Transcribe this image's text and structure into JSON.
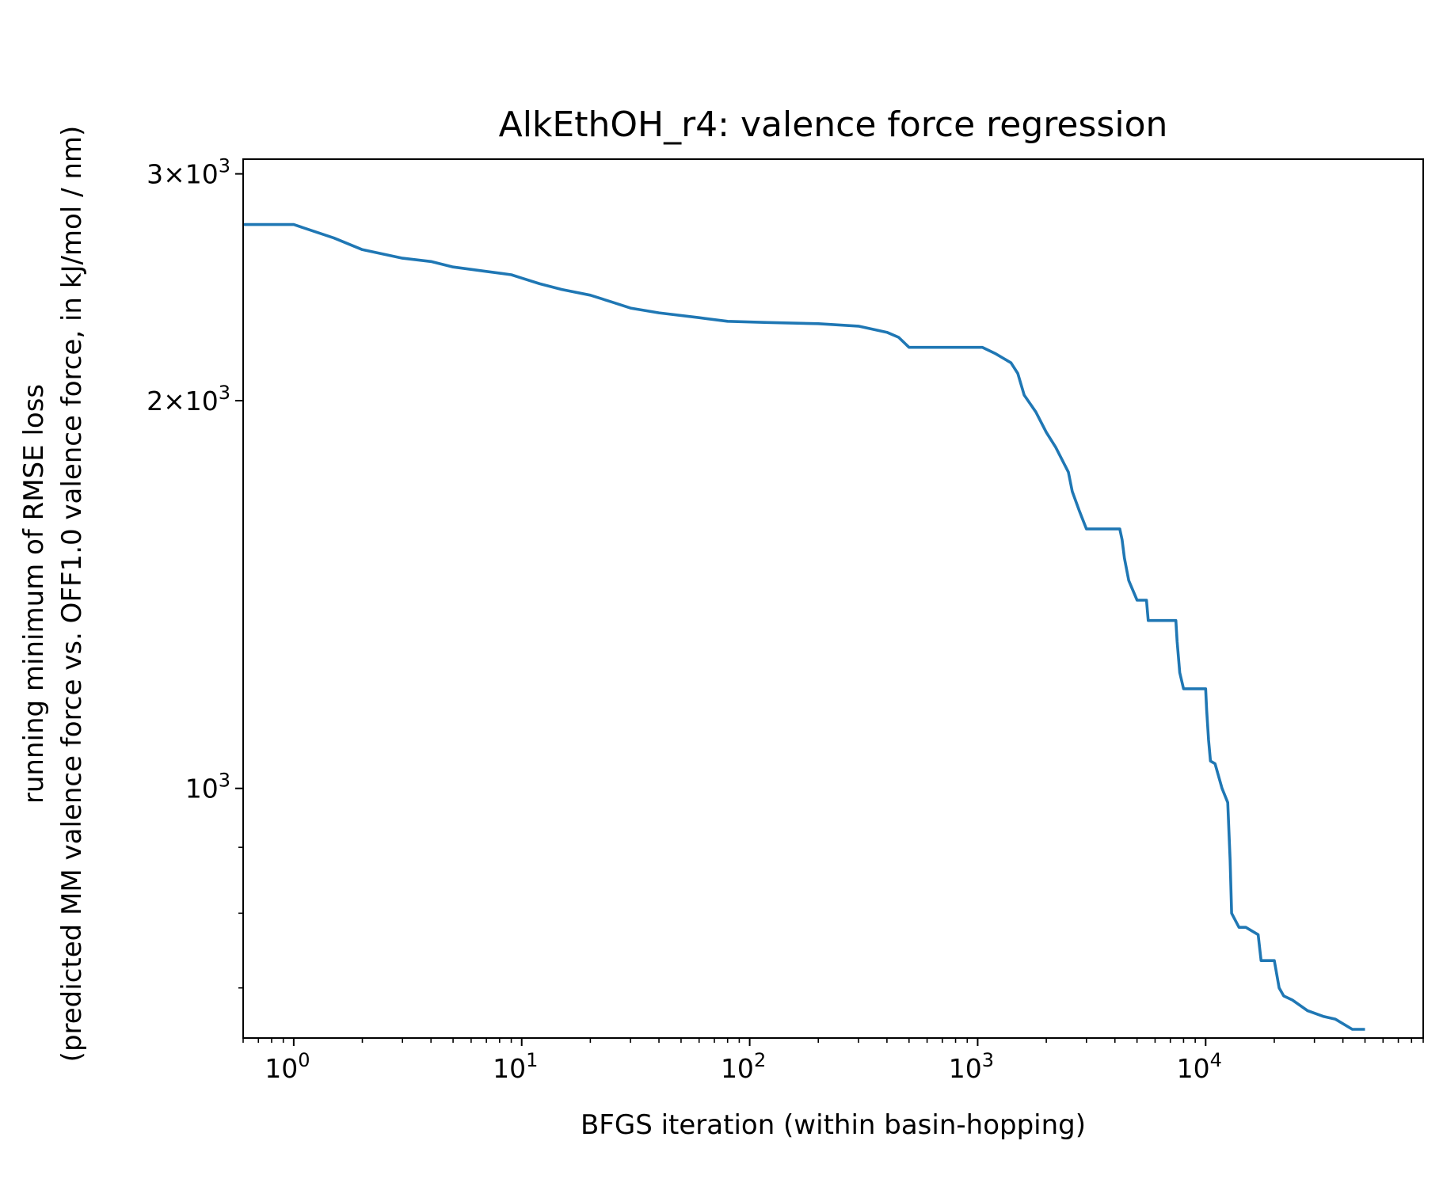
{
  "chart_data": {
    "type": "line",
    "title": "AlkEthOH_r4: valence force regression",
    "xlabel": "BFGS iteration (within basin-hopping)",
    "ylabel_line1": "running minimum of RMSE loss",
    "ylabel_line2": "(predicted MM valence force vs. OFF1.0 valence force, in kJ/mol / nm)",
    "xscale": "log",
    "yscale": "log",
    "xlim": [
      0.6,
      90000
    ],
    "ylim": [
      640,
      3080
    ],
    "grid": false,
    "line_color": "#1f77b4",
    "x_ticks": [
      {
        "value": 1,
        "base": "10",
        "exp": "0"
      },
      {
        "value": 10,
        "base": "10",
        "exp": "1"
      },
      {
        "value": 100,
        "base": "10",
        "exp": "2"
      },
      {
        "value": 1000,
        "base": "10",
        "exp": "3"
      },
      {
        "value": 10000,
        "base": "10",
        "exp": "4"
      }
    ],
    "y_ticks": [
      {
        "value": 1000,
        "prefix": "",
        "base": "10",
        "exp": "3"
      },
      {
        "value": 2000,
        "prefix": "2×",
        "base": "10",
        "exp": "3"
      },
      {
        "value": 3000,
        "prefix": "3×",
        "base": "10",
        "exp": "3"
      }
    ],
    "series": [
      {
        "x": [
          0.6,
          1,
          1.5,
          2,
          3,
          4,
          5,
          7,
          9,
          10,
          12,
          15,
          20,
          25,
          30,
          40,
          60,
          80,
          120,
          200,
          300,
          400,
          450,
          500,
          1050,
          1200,
          1400,
          1500,
          1600,
          1800,
          2000,
          2200,
          2500,
          2600,
          2800,
          3000,
          4200,
          4300,
          4400,
          4600,
          5000,
          5500,
          5600,
          7400,
          7500,
          7700,
          8000,
          8200,
          10000,
          10100,
          10300,
          10500,
          11000,
          11800,
          12500,
          12800,
          13000,
          14000,
          15000,
          17000,
          17500,
          20000,
          21000,
          22000,
          24000,
          28000,
          33000,
          37000,
          44000,
          50000
        ],
        "y": [
          2740,
          2740,
          2675,
          2620,
          2580,
          2565,
          2540,
          2520,
          2505,
          2490,
          2465,
          2440,
          2415,
          2385,
          2360,
          2340,
          2320,
          2305,
          2300,
          2295,
          2285,
          2260,
          2240,
          2200,
          2200,
          2175,
          2140,
          2100,
          2020,
          1960,
          1890,
          1840,
          1760,
          1700,
          1640,
          1590,
          1590,
          1560,
          1510,
          1450,
          1400,
          1400,
          1350,
          1350,
          1300,
          1230,
          1195,
          1195,
          1195,
          1150,
          1090,
          1050,
          1045,
          1000,
          975,
          880,
          800,
          780,
          780,
          770,
          735,
          735,
          700,
          690,
          685,
          672,
          665,
          662,
          650,
          650
        ]
      }
    ]
  }
}
